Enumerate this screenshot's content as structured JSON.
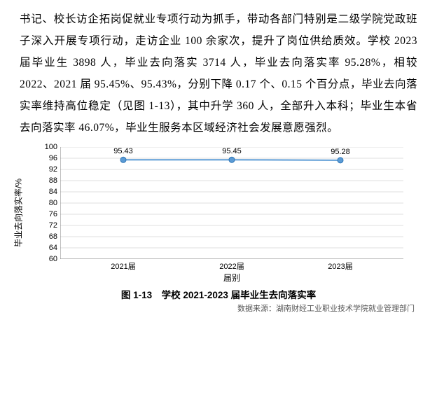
{
  "paragraph": "书记、校长访企拓岗促就业专项行动为抓手，带动各部门特别是二级学院党政班子深入开展专项行动，走访企业 100 余家次，提升了岗位供给质效。学校 2023 届毕业生 3898 人，毕业去向落实 3714 人，毕业去向落实率 95.28%，相较 2022、2021 届 95.45%、95.43%，分别下降 0.17 个、0.15 个百分点，毕业去向落实率维持高位稳定（见图 1-13），其中升学 360 人，全部升入本科；毕业生本省去向落实率 46.07%，毕业生服务本区域经济社会发展意愿强烈。",
  "chart": {
    "type": "line",
    "y_label": "毕业去向落实率/%",
    "x_label": "届别",
    "categories": [
      "2021届",
      "2022届",
      "2023届"
    ],
    "values": [
      95.43,
      95.45,
      95.28
    ],
    "value_labels": [
      "95.43",
      "95.45",
      "95.28"
    ],
    "ylim": [
      60,
      100
    ],
    "ytick_step": 4,
    "y_ticks": [
      60,
      64,
      68,
      72,
      76,
      80,
      84,
      88,
      92,
      96,
      100
    ],
    "line_color": "#5b9bd5",
    "marker_fill": "#5b9bd5",
    "marker_stroke": "#2e75b6",
    "grid_color": "#bfbfbf",
    "axis_color": "#808080",
    "marker_radius": 4,
    "line_width": 2
  },
  "caption": "图 1-13　学校 2021-2023 届毕业生去向落实率",
  "source": "数据来源：湖南财经工业职业技术学院就业管理部门"
}
